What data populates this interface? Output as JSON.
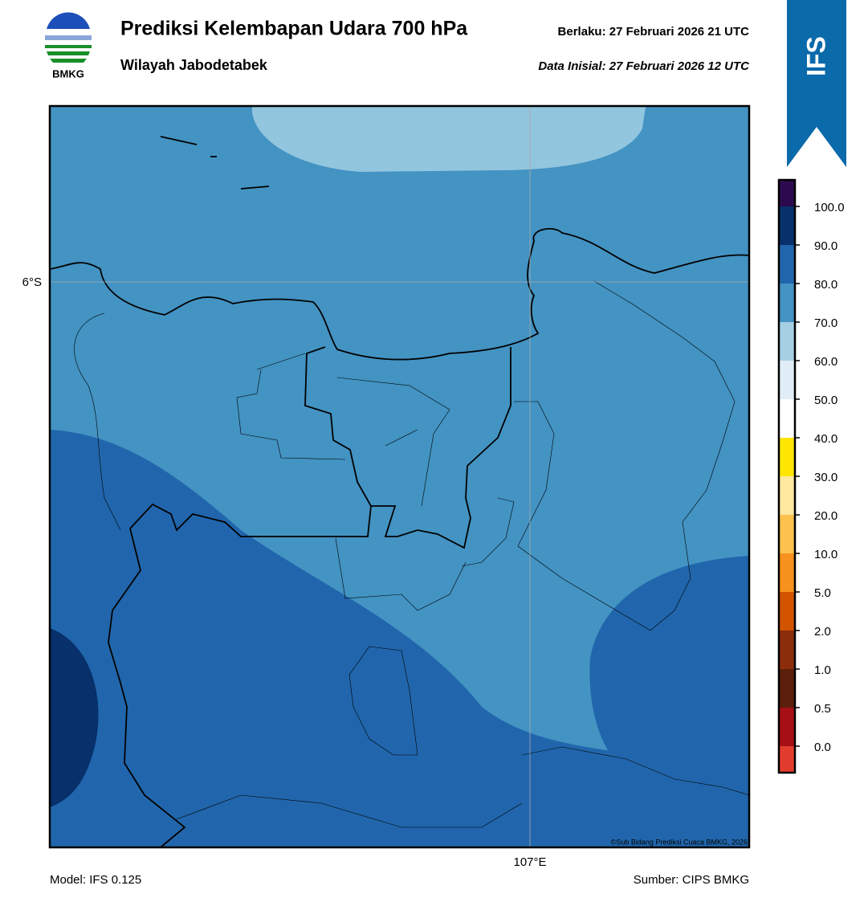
{
  "header": {
    "logo_text": "BMKG",
    "title": "Prediksi Kelembapan Udara 700 hPa",
    "subtitle": "Wilayah Jabodetabek",
    "valid": "Berlaku:  27 Februari 2026 21 UTC",
    "init": "Data Inisial:  27 Februari 2026 12 UTC",
    "badge": "IFS"
  },
  "map": {
    "lat_label": "6°S",
    "lon_label": "107°E",
    "credit": "©Sub Bidang Prediksi Cuaca BMKG, 2026"
  },
  "colorbar": {
    "colors": [
      "#e23c2e",
      "#a50f15",
      "#5a200c",
      "#8b2c0a",
      "#d35400",
      "#f7921e",
      "#fdc14e",
      "#ffe8a0",
      "#ffe600",
      "#ffffff",
      "#e1edf6",
      "#a6cfe4",
      "#4393c3",
      "#2166ac",
      "#08306b",
      "#2d0a4e"
    ],
    "ticks": [
      {
        "value": 0,
        "label": "0.0"
      },
      {
        "value": 0.5,
        "label": "0.5"
      },
      {
        "value": 1,
        "label": "1.0"
      },
      {
        "value": 2,
        "label": "2.0"
      },
      {
        "value": 5,
        "label": "5.0"
      },
      {
        "value": 10,
        "label": "10.0"
      },
      {
        "value": 20,
        "label": "20.0"
      },
      {
        "value": 30,
        "label": "30.0"
      },
      {
        "value": 40,
        "label": "40.0"
      },
      {
        "value": 50,
        "label": "50.0"
      },
      {
        "value": 60,
        "label": "60.0"
      },
      {
        "value": 70,
        "label": "70.0"
      },
      {
        "value": 80,
        "label": "80.0"
      },
      {
        "value": 90,
        "label": "90.0"
      },
      {
        "value": 100,
        "label": "100.0"
      }
    ]
  },
  "footer": {
    "model": "Model: IFS 0.125",
    "source": "Sumber: CIPS BMKG"
  }
}
